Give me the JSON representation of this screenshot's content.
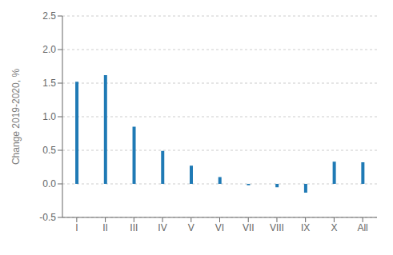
{
  "chart_data": {
    "type": "bar",
    "categories": [
      "I",
      "II",
      "III",
      "IV",
      "V",
      "VI",
      "VII",
      "VIII",
      "IX",
      "X",
      "All"
    ],
    "values": [
      1.52,
      1.62,
      0.85,
      0.49,
      0.27,
      0.1,
      -0.02,
      -0.05,
      -0.13,
      0.33,
      0.32
    ],
    "color": "#1f7ab5",
    "ylabel": "Change 2019-2020, %",
    "ylim": [
      -0.5,
      2.5
    ],
    "yticks": [
      -0.5,
      {
        "value": 0.0,
        "label": "0.0"
      },
      0.5,
      {
        "value": 1.0,
        "label": "1.0"
      },
      1.5,
      {
        "value": 2.0,
        "label": "2.0"
      },
      2.5
    ],
    "grid": true
  }
}
